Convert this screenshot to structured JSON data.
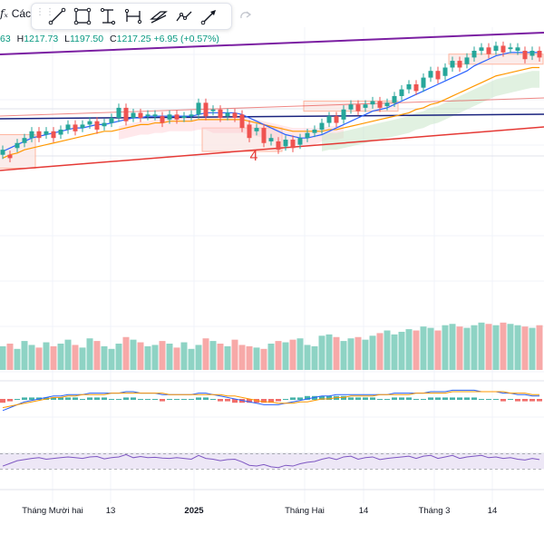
{
  "header": {
    "fx_label": "fₓ",
    "title_truncated": "Các",
    "ohlc": {
      "o_tail": "63",
      "h_label": "H",
      "h": "1217.73",
      "l_label": "L",
      "l": "1197.50",
      "c_label": "C",
      "c": "1217.25",
      "change": "+6.95 (+0.57%)"
    }
  },
  "toolbar": {
    "tools": [
      "trend-line",
      "rectangle",
      "measure-price",
      "measure-date",
      "parallel-channel",
      "path",
      "arrow"
    ],
    "redo_label": "redo"
  },
  "colors": {
    "up": "#26a69a",
    "down": "#ef5350",
    "vol_up": "#8ed3c4",
    "vol_down": "#f7a9a8",
    "ema_fast": "#2962ff",
    "ema_slow": "#ff9800",
    "trend_purple": "#7b1fa2",
    "trend_navy": "#1a237e",
    "trend_red": "#e53935",
    "box_fill": "#fbe9e7",
    "box_stroke": "#ffab91",
    "rsi_band": "#ede7f6",
    "rsi_line": "#7e57c2"
  },
  "chart_data": {
    "type": "candlestick",
    "title": "",
    "annotation": "4",
    "x_labels": [
      "Tháng Mười hai",
      "13",
      "2025",
      "Tháng Hai",
      "14",
      "Tháng 3",
      "14"
    ],
    "x_label_bold": [
      "2025"
    ],
    "candles": [
      [
        1,
        1,
        -10,
        -2
      ],
      [
        0,
        -2,
        -4,
        2
      ],
      [
        1,
        2,
        -2,
        5
      ],
      [
        1,
        5,
        3,
        8
      ],
      [
        1,
        8,
        5,
        12
      ],
      [
        0,
        12,
        8,
        10
      ],
      [
        1,
        10,
        7,
        12
      ],
      [
        0,
        12,
        8,
        10
      ],
      [
        1,
        10,
        8,
        13
      ],
      [
        1,
        13,
        11,
        16
      ],
      [
        0,
        16,
        12,
        14
      ],
      [
        1,
        14,
        11,
        16
      ],
      [
        1,
        16,
        14,
        18
      ],
      [
        0,
        18,
        13,
        15
      ],
      [
        1,
        15,
        12,
        17
      ],
      [
        1,
        17,
        14,
        20
      ],
      [
        1,
        20,
        17,
        26
      ],
      [
        0,
        26,
        18,
        20
      ],
      [
        1,
        20,
        17,
        23
      ],
      [
        0,
        23,
        20,
        21
      ],
      [
        1,
        21,
        18,
        22
      ],
      [
        1,
        22,
        18,
        21
      ],
      [
        0,
        21,
        17,
        19
      ],
      [
        1,
        19,
        17,
        22
      ],
      [
        0,
        22,
        19,
        20
      ],
      [
        1,
        20,
        17,
        21
      ],
      [
        1,
        21,
        16,
        22
      ],
      [
        1,
        22,
        19,
        29
      ],
      [
        0,
        29,
        21,
        24
      ],
      [
        1,
        24,
        21,
        25
      ],
      [
        0,
        25,
        20,
        21
      ],
      [
        1,
        21,
        19,
        23
      ],
      [
        0,
        23,
        20,
        22
      ],
      [
        0,
        22,
        14,
        16
      ],
      [
        0,
        16,
        8,
        12
      ],
      [
        1,
        12,
        9,
        14
      ],
      [
        0,
        14,
        5,
        8
      ],
      [
        1,
        8,
        3,
        6
      ],
      [
        0,
        6,
        1,
        3
      ],
      [
        1,
        3,
        1,
        7
      ],
      [
        0,
        7,
        2,
        4
      ],
      [
        1,
        4,
        2,
        8
      ],
      [
        1,
        8,
        6,
        11
      ],
      [
        1,
        11,
        9,
        13
      ],
      [
        1,
        13,
        10,
        17
      ],
      [
        1,
        17,
        14,
        21
      ],
      [
        0,
        21,
        17,
        19
      ],
      [
        1,
        19,
        17,
        25
      ],
      [
        1,
        25,
        22,
        28
      ],
      [
        0,
        28,
        24,
        26
      ],
      [
        1,
        26,
        23,
        28
      ],
      [
        1,
        28,
        25,
        30
      ],
      [
        0,
        30,
        26,
        27
      ],
      [
        1,
        27,
        24,
        29
      ],
      [
        1,
        29,
        26,
        33
      ],
      [
        1,
        33,
        30,
        37
      ],
      [
        1,
        37,
        34,
        40
      ],
      [
        0,
        40,
        36,
        38
      ],
      [
        1,
        38,
        35,
        44
      ],
      [
        1,
        44,
        41,
        48
      ],
      [
        0,
        48,
        43,
        45
      ],
      [
        1,
        45,
        42,
        50
      ],
      [
        1,
        50,
        46,
        54
      ],
      [
        0,
        54,
        50,
        52
      ],
      [
        1,
        52,
        48,
        56
      ],
      [
        1,
        56,
        53,
        60
      ],
      [
        1,
        60,
        57,
        62
      ],
      [
        0,
        62,
        58,
        60
      ],
      [
        1,
        60,
        58,
        63
      ],
      [
        0,
        63,
        59,
        61
      ],
      [
        1,
        61,
        57,
        62
      ],
      [
        1,
        62,
        58,
        60
      ],
      [
        0,
        60,
        55,
        57
      ],
      [
        1,
        57,
        55,
        60
      ],
      [
        0,
        60,
        56,
        58
      ]
    ],
    "ema_fast": [
      0,
      2,
      4,
      6,
      8,
      9,
      10,
      11,
      12,
      13,
      14,
      14,
      15,
      16,
      16,
      17,
      18,
      19,
      20,
      20,
      21,
      21,
      21,
      21,
      21,
      21,
      21,
      22,
      23,
      23,
      23,
      23,
      23,
      22,
      20,
      18,
      16,
      14,
      12,
      10,
      9,
      8,
      8,
      9,
      10,
      12,
      14,
      16,
      18,
      20,
      22,
      24,
      25,
      26,
      28,
      30,
      32,
      34,
      36,
      38,
      40,
      42,
      44,
      46,
      48,
      51,
      53,
      55,
      57,
      58,
      59,
      59,
      59,
      59,
      59
    ],
    "ema_slow": [
      -4,
      -2,
      -1,
      1,
      2,
      3,
      4,
      5,
      6,
      7,
      8,
      9,
      10,
      11,
      12,
      12,
      13,
      14,
      15,
      16,
      16,
      17,
      17,
      18,
      18,
      18,
      18,
      19,
      19,
      19,
      19,
      19,
      19,
      19,
      18,
      17,
      16,
      15,
      14,
      13,
      12,
      12,
      12,
      12,
      12,
      13,
      13,
      14,
      15,
      16,
      17,
      18,
      19,
      20,
      21,
      22,
      23,
      25,
      26,
      28,
      29,
      31,
      33,
      35,
      37,
      39,
      41,
      43,
      45,
      46,
      47,
      48,
      49,
      50,
      50
    ],
    "volume": [
      18,
      20,
      16,
      22,
      19,
      17,
      21,
      18,
      20,
      23,
      19,
      17,
      24,
      22,
      18,
      16,
      20,
      25,
      23,
      21,
      18,
      19,
      22,
      20,
      17,
      21,
      16,
      19,
      24,
      22,
      20,
      18,
      23,
      19,
      18,
      17,
      16,
      20,
      22,
      21,
      23,
      24,
      19,
      18,
      26,
      27,
      25,
      22,
      24,
      25,
      23,
      26,
      28,
      30,
      27,
      29,
      31,
      30,
      33,
      32,
      30,
      34,
      35,
      33,
      32,
      34,
      36,
      35,
      34,
      36,
      35,
      34,
      33,
      32,
      34
    ],
    "macd": [
      -8,
      -6,
      -4,
      -2,
      -1,
      0,
      1,
      2,
      2,
      3,
      3,
      3,
      4,
      4,
      4,
      4,
      4,
      5,
      5,
      4,
      4,
      4,
      3,
      3,
      3,
      3,
      3,
      4,
      4,
      3,
      2,
      1,
      0,
      -1,
      -2,
      -3,
      -4,
      -4,
      -4,
      -3,
      -2,
      -1,
      0,
      1,
      2,
      2,
      3,
      3,
      3,
      3,
      3,
      3,
      3,
      3,
      4,
      4,
      4,
      4,
      4,
      5,
      5,
      5,
      6,
      6,
      6,
      6,
      5,
      5,
      5,
      4,
      4,
      3,
      3,
      2,
      2
    ],
    "macd_signal": [
      -6,
      -5,
      -4,
      -3,
      -2,
      -1,
      0,
      1,
      1,
      2,
      2,
      3,
      3,
      3,
      3,
      4,
      4,
      4,
      4,
      4,
      4,
      4,
      4,
      3,
      3,
      3,
      3,
      3,
      3,
      3,
      3,
      2,
      2,
      1,
      0,
      -1,
      -2,
      -2,
      -3,
      -3,
      -3,
      -2,
      -2,
      -1,
      0,
      0,
      1,
      1,
      2,
      2,
      2,
      2,
      3,
      3,
      3,
      3,
      3,
      4,
      4,
      4,
      4,
      4,
      5,
      5,
      5,
      5,
      5,
      5,
      5,
      5,
      4,
      4,
      4,
      3,
      3
    ],
    "rsi": [
      38,
      45,
      52,
      55,
      58,
      60,
      56,
      58,
      60,
      62,
      60,
      58,
      62,
      63,
      57,
      60,
      62,
      68,
      60,
      63,
      60,
      61,
      59,
      58,
      60,
      58,
      56,
      66,
      58,
      56,
      52,
      55,
      56,
      49,
      40,
      38,
      42,
      36,
      34,
      40,
      38,
      44,
      48,
      50,
      56,
      60,
      55,
      62,
      64,
      56,
      60,
      62,
      55,
      58,
      60,
      62,
      64,
      58,
      64,
      66,
      58,
      62,
      66,
      58,
      62,
      64,
      66,
      60,
      62,
      58,
      60,
      56,
      54,
      58,
      55
    ],
    "rsi_range": [
      0,
      100
    ]
  }
}
